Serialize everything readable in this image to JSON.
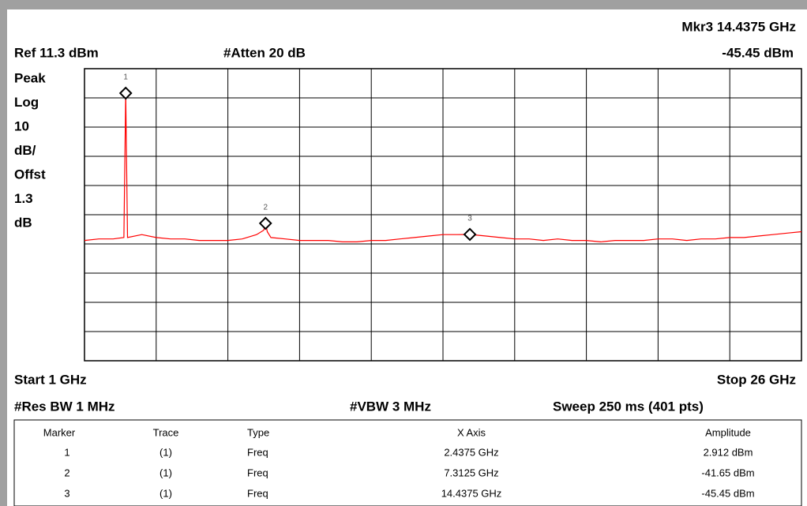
{
  "chart_data": {
    "type": "line",
    "header": {
      "marker_readout": "Mkr3 14.4375 GHz",
      "ref": "Ref 11.3 dBm",
      "atten": "#Atten 20 dB",
      "marker_amplitude": "-45.45 dBm"
    },
    "side_labels": [
      "Peak",
      "Log",
      "10",
      "dB/",
      "Offst",
      "1.3",
      "dB"
    ],
    "footer": {
      "start": "Start 1 GHz",
      "stop": "Stop 26 GHz",
      "rbw": "#Res BW 1 MHz",
      "vbw": "#VBW 3 MHz",
      "sweep": "Sweep 250 ms (401 pts)"
    },
    "xlim": [
      1,
      26
    ],
    "xticks": [
      1,
      3.5,
      6,
      8.5,
      11,
      13.5,
      16,
      18.5,
      21,
      23.5,
      26
    ],
    "ylim": [
      -88.7,
      11.3
    ],
    "yticks": [
      -88.7,
      -78.7,
      -68.7,
      -58.7,
      -48.7,
      -38.7,
      -28.7,
      -18.7,
      -8.7,
      1.3,
      11.3
    ],
    "grid": true,
    "color": "#ff0000",
    "x": [
      1,
      1.5,
      2,
      2.375,
      2.4375,
      2.5,
      3,
      3.5,
      4,
      4.5,
      5,
      5.5,
      6,
      6.5,
      7,
      7.25,
      7.3125,
      7.375,
      7.5,
      8,
      8.5,
      9,
      9.5,
      10,
      10.5,
      11,
      11.5,
      12,
      12.5,
      13,
      13.5,
      14,
      14.4375,
      15,
      15.5,
      16,
      16.5,
      17,
      17.5,
      18,
      18.5,
      19,
      19.5,
      20,
      20.5,
      21,
      21.5,
      22,
      22.5,
      23,
      23.5,
      24,
      24.5,
      25,
      25.5,
      26
    ],
    "values": [
      -47.5,
      -47,
      -47,
      -46.5,
      2.912,
      -46.5,
      -45.5,
      -46.5,
      -47,
      -47,
      -47.5,
      -47.5,
      -47.5,
      -47,
      -45.5,
      -44,
      -41.65,
      -44.5,
      -46.5,
      -47,
      -47.5,
      -47.5,
      -47.5,
      -48,
      -48,
      -47.5,
      -47.5,
      -47,
      -46.5,
      -46,
      -45.5,
      -45.5,
      -45.45,
      -46,
      -46.5,
      -47,
      -47,
      -47.5,
      -47,
      -47.5,
      -47.5,
      -48,
      -47.5,
      -47.5,
      -47.5,
      -47,
      -47,
      -47.5,
      -47,
      -47,
      -46.5,
      -46.5,
      -46,
      -45.5,
      -45,
      -44.5
    ],
    "markers": [
      {
        "label": "1",
        "x": 2.4375,
        "y": 2.912
      },
      {
        "label": "2",
        "x": 7.3125,
        "y": -41.65
      },
      {
        "label": "3",
        "x": 14.4375,
        "y": -45.45
      }
    ],
    "table": {
      "columns": [
        "Marker",
        "Trace",
        "Type",
        "X Axis",
        "Amplitude"
      ],
      "rows": [
        [
          "1",
          "(1)",
          "Freq",
          "2.4375 GHz",
          "2.912 dBm"
        ],
        [
          "2",
          "(1)",
          "Freq",
          "7.3125 GHz",
          "-41.65 dBm"
        ],
        [
          "3",
          "(1)",
          "Freq",
          "14.4375 GHz",
          "-45.45 dBm"
        ]
      ]
    }
  }
}
